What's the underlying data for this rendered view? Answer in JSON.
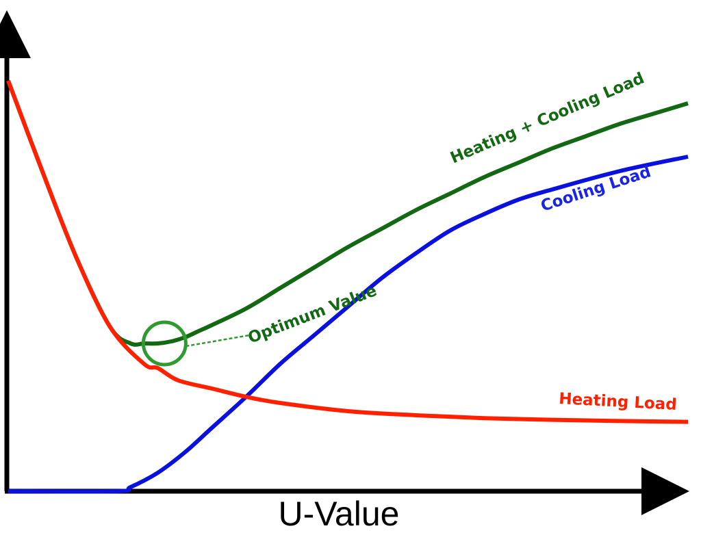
{
  "chart_data": {
    "type": "line",
    "title": "",
    "xlabel": "U-Value",
    "ylabel": "",
    "xlim": [
      0,
      100
    ],
    "ylim": [
      0,
      100
    ],
    "grid": false,
    "legend": "none",
    "series": [
      {
        "name": "Heating Load",
        "color": "#ff2000",
        "x": [
          0,
          5,
          10,
          15,
          20,
          22,
          25,
          30,
          35,
          40,
          50,
          60,
          70,
          80,
          90,
          100
        ],
        "values": [
          100,
          78,
          57,
          40,
          31,
          30,
          27,
          25,
          23,
          21.5,
          19.5,
          18.5,
          17.8,
          17.4,
          17.1,
          16.9
        ]
      },
      {
        "name": "Cooling Load",
        "color": "#0a10dd",
        "x": [
          0,
          16,
          18,
          22,
          26,
          30,
          35,
          40,
          45,
          50,
          55,
          60,
          65,
          70,
          75,
          80,
          90,
          100
        ],
        "values": [
          0,
          0,
          1,
          4.5,
          9.5,
          15.5,
          23,
          31,
          38,
          45,
          52,
          58,
          63.5,
          67.5,
          71,
          73.5,
          78,
          81.5
        ]
      },
      {
        "name": "Heating +  Cooling Load",
        "color": "#136913",
        "x": [
          0,
          5,
          10,
          15,
          18,
          20,
          22,
          24,
          26,
          28,
          30,
          35,
          40,
          45,
          50,
          55,
          60,
          65,
          70,
          75,
          80,
          85,
          90,
          95,
          100
        ],
        "values": [
          100,
          78,
          57,
          40,
          36,
          36,
          36,
          36.5,
          37.5,
          39,
          40.5,
          44.5,
          49.5,
          54.5,
          59.5,
          64,
          68.5,
          72.5,
          76.5,
          80,
          83.5,
          86.5,
          89.5,
          92,
          94.5
        ]
      }
    ],
    "annotations": [
      {
        "text": "Optimum Value",
        "x": 23,
        "y": 36,
        "color": "#136913"
      }
    ]
  }
}
